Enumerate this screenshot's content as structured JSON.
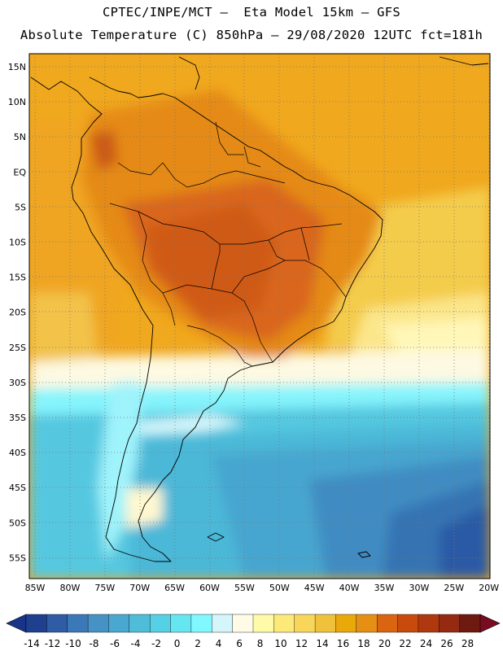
{
  "header": {
    "line1": "CPTEC/INPE/MCT –  Eta Model 15km – GFS",
    "line2": "Absolute Temperature (C) 850hPa – 29/08/2020 12UTC fct=181h"
  },
  "map": {
    "lat_labels": [
      "15N",
      "10N",
      "5N",
      "EQ",
      "5S",
      "10S",
      "15S",
      "20S",
      "25S",
      "30S",
      "35S",
      "40S",
      "45S",
      "50S",
      "55S"
    ],
    "lon_labels": [
      "85W",
      "80W",
      "75W",
      "70W",
      "65W",
      "60W",
      "55W",
      "50W",
      "45W",
      "40W",
      "35W",
      "30W",
      "25W",
      "20W"
    ]
  },
  "colorbar": {
    "labels": [
      "-14",
      "-12",
      "-10",
      "-8",
      "-6",
      "-4",
      "-2",
      "0",
      "2",
      "4",
      "6",
      "8",
      "10",
      "12",
      "14",
      "16",
      "18",
      "20",
      "22",
      "24",
      "26",
      "28"
    ],
    "colors": [
      "#1f3f8f",
      "#2f5ca4",
      "#3a78b8",
      "#4692c4",
      "#4aa8d0",
      "#4fbcd8",
      "#56d0e4",
      "#66e6f0",
      "#80f8ff",
      "#d4f6fb",
      "#fffbe6",
      "#fffaa8",
      "#fde97a",
      "#f8d65a",
      "#f0c23c",
      "#eaa80a",
      "#e58f15",
      "#da6410",
      "#c84a0c",
      "#b0380e",
      "#942a12",
      "#6e1a10"
    ],
    "under_color": "#17348a",
    "over_color": "#7a0c22"
  }
}
